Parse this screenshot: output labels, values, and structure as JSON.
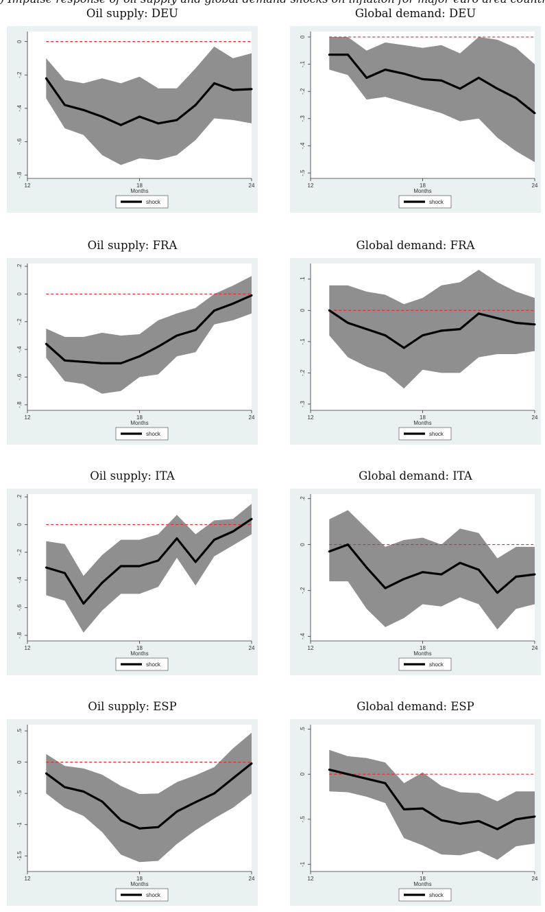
{
  "caption": ") Impulse response of oil supply and global demand shocks on inflation for major euro area countries",
  "chart_data": [
    {
      "type": "line",
      "title": "Oil supply: DEU",
      "xlabel": "Months",
      "legend": "shock",
      "x": [
        13,
        14,
        15,
        16,
        17,
        18,
        19,
        20,
        21,
        22,
        23,
        24
      ],
      "values": [
        -0.22,
        -0.38,
        -0.41,
        -0.45,
        -0.5,
        -0.45,
        -0.49,
        -0.47,
        -0.38,
        -0.25,
        -0.29,
        -0.285
      ],
      "upper": [
        -0.1,
        -0.23,
        -0.25,
        -0.22,
        -0.25,
        -0.21,
        -0.28,
        -0.28,
        -0.16,
        -0.03,
        -0.1,
        -0.07
      ],
      "lower": [
        -0.34,
        -0.52,
        -0.56,
        -0.68,
        -0.74,
        -0.7,
        -0.71,
        -0.68,
        -0.59,
        -0.46,
        -0.47,
        -0.49
      ],
      "xlim": [
        12,
        24
      ],
      "ylim": [
        -0.82,
        0.06
      ],
      "xticks": [
        12,
        18,
        24
      ],
      "yticks": [
        0,
        -0.2,
        -0.4,
        -0.6,
        -0.8
      ],
      "ytick_labels": [
        "0",
        "-.2",
        "-.4",
        "-.6",
        "-.8"
      ],
      "ref": 0
    },
    {
      "type": "line",
      "title": "Global demand: DEU",
      "xlabel": "Months",
      "legend": "shock",
      "x": [
        13,
        14,
        15,
        16,
        17,
        18,
        19,
        20,
        21,
        22,
        23,
        24
      ],
      "values": [
        -0.065,
        -0.065,
        -0.15,
        -0.12,
        -0.135,
        -0.155,
        -0.16,
        -0.19,
        -0.15,
        -0.19,
        -0.225,
        -0.28
      ],
      "upper": [
        0.0,
        0.0,
        -0.05,
        -0.02,
        -0.03,
        -0.04,
        -0.03,
        -0.06,
        0.0,
        -0.01,
        -0.04,
        -0.1
      ],
      "lower": [
        -0.12,
        -0.14,
        -0.23,
        -0.22,
        -0.24,
        -0.26,
        -0.28,
        -0.31,
        -0.3,
        -0.37,
        -0.42,
        -0.46
      ],
      "xlim": [
        12,
        24
      ],
      "ylim": [
        -0.52,
        0.02
      ],
      "xticks": [
        12,
        18,
        24
      ],
      "yticks": [
        0,
        -0.1,
        -0.2,
        -0.3,
        -0.4,
        -0.5
      ],
      "ytick_labels": [
        "0",
        "-.1",
        "-.2",
        "-.3",
        "-.4",
        "-.5"
      ],
      "ref": 0
    },
    {
      "type": "line",
      "title": "Oil supply: FRA",
      "xlabel": "Months",
      "legend": "shock",
      "x": [
        13,
        14,
        15,
        16,
        17,
        18,
        19,
        20,
        21,
        22,
        23,
        24
      ],
      "values": [
        -0.36,
        -0.48,
        -0.49,
        -0.5,
        -0.5,
        -0.45,
        -0.38,
        -0.3,
        -0.26,
        -0.12,
        -0.07,
        -0.01
      ],
      "upper": [
        -0.25,
        -0.31,
        -0.31,
        -0.28,
        -0.3,
        -0.29,
        -0.19,
        -0.14,
        -0.1,
        0.0,
        0.06,
        0.13
      ],
      "lower": [
        -0.46,
        -0.63,
        -0.65,
        -0.72,
        -0.7,
        -0.6,
        -0.58,
        -0.45,
        -0.42,
        -0.22,
        -0.19,
        -0.14
      ],
      "xlim": [
        12,
        24
      ],
      "ylim": [
        -0.84,
        0.22
      ],
      "xticks": [
        12,
        18,
        24
      ],
      "yticks": [
        0.2,
        0,
        -0.2,
        -0.4,
        -0.6,
        -0.8
      ],
      "ytick_labels": [
        ".2",
        "0",
        "-.2",
        "-.4",
        "-.6",
        "-.8"
      ],
      "ref": 0
    },
    {
      "type": "line",
      "title": "Global demand: FRA",
      "xlabel": "Months",
      "legend": "shock",
      "x": [
        13,
        14,
        15,
        16,
        17,
        18,
        19,
        20,
        21,
        22,
        23,
        24
      ],
      "values": [
        0.0,
        -0.04,
        -0.06,
        -0.08,
        -0.12,
        -0.08,
        -0.065,
        -0.06,
        -0.01,
        -0.025,
        -0.04,
        -0.045
      ],
      "upper": [
        0.08,
        0.08,
        0.06,
        0.05,
        0.02,
        0.04,
        0.08,
        0.09,
        0.13,
        0.09,
        0.06,
        0.04
      ],
      "lower": [
        -0.08,
        -0.15,
        -0.18,
        -0.2,
        -0.25,
        -0.19,
        -0.2,
        -0.2,
        -0.15,
        -0.14,
        -0.14,
        -0.13
      ],
      "xlim": [
        12,
        24
      ],
      "ylim": [
        -0.32,
        0.15
      ],
      "xticks": [
        12,
        18,
        24
      ],
      "yticks": [
        0.1,
        0,
        -0.1,
        -0.2,
        -0.3
      ],
      "ytick_labels": [
        ".1",
        "0",
        "-.1",
        "-.2",
        "-.3"
      ],
      "ref": 0
    },
    {
      "type": "line",
      "title": "Oil supply: ITA",
      "xlabel": "Months",
      "legend": "shock",
      "x": [
        13,
        14,
        15,
        16,
        17,
        18,
        19,
        20,
        21,
        22,
        23,
        24
      ],
      "values": [
        -0.31,
        -0.35,
        -0.57,
        -0.42,
        -0.3,
        -0.3,
        -0.26,
        -0.1,
        -0.27,
        -0.11,
        -0.05,
        0.04
      ],
      "upper": [
        -0.12,
        -0.14,
        -0.37,
        -0.22,
        -0.11,
        -0.11,
        -0.07,
        0.07,
        -0.07,
        0.03,
        0.04,
        0.15
      ],
      "lower": [
        -0.51,
        -0.55,
        -0.78,
        -0.62,
        -0.5,
        -0.5,
        -0.45,
        -0.24,
        -0.44,
        -0.23,
        -0.15,
        -0.07
      ],
      "xlim": [
        12,
        24
      ],
      "ylim": [
        -0.84,
        0.22
      ],
      "xticks": [
        12,
        18,
        24
      ],
      "yticks": [
        0.2,
        0,
        -0.2,
        -0.4,
        -0.6,
        -0.8
      ],
      "ytick_labels": [
        ".2",
        "0",
        "-.2",
        "-.4",
        "-.6",
        "-.8"
      ],
      "ref": 0
    },
    {
      "type": "line",
      "title": "Global demand: ITA",
      "xlabel": "Months",
      "legend": "shock",
      "x": [
        13,
        14,
        15,
        16,
        17,
        18,
        19,
        20,
        21,
        22,
        23,
        24
      ],
      "values": [
        -0.03,
        0.0,
        -0.1,
        -0.19,
        -0.15,
        -0.12,
        -0.13,
        -0.08,
        -0.11,
        -0.21,
        -0.14,
        -0.13
      ],
      "upper": [
        0.11,
        0.15,
        0.07,
        -0.01,
        0.02,
        0.03,
        0.0,
        0.07,
        0.05,
        -0.06,
        -0.01,
        -0.01
      ],
      "lower": [
        -0.16,
        -0.16,
        -0.28,
        -0.36,
        -0.32,
        -0.26,
        -0.27,
        -0.23,
        -0.26,
        -0.37,
        -0.28,
        -0.26
      ],
      "xlim": [
        12,
        24
      ],
      "ylim": [
        -0.42,
        0.22
      ],
      "xticks": [
        12,
        18,
        24
      ],
      "yticks": [
        0.2,
        0,
        -0.2,
        -0.4
      ],
      "ytick_labels": [
        ".2",
        "0",
        "-.2",
        "-.4"
      ],
      "ref": 0
    },
    {
      "type": "line",
      "title": "Oil supply: ESP",
      "xlabel": "Months",
      "legend": "shock",
      "x": [
        13,
        14,
        15,
        16,
        17,
        18,
        19,
        20,
        21,
        22,
        23,
        24
      ],
      "values": [
        -0.18,
        -0.4,
        -0.47,
        -0.63,
        -0.93,
        -1.06,
        -1.04,
        -0.79,
        -0.64,
        -0.5,
        -0.26,
        -0.02
      ],
      "upper": [
        0.13,
        -0.06,
        -0.1,
        -0.2,
        -0.38,
        -0.51,
        -0.5,
        -0.32,
        -0.21,
        -0.08,
        0.22,
        0.47
      ],
      "lower": [
        -0.5,
        -0.73,
        -0.86,
        -1.12,
        -1.48,
        -1.6,
        -1.58,
        -1.31,
        -1.09,
        -0.9,
        -0.73,
        -0.5
      ],
      "xlim": [
        12,
        24
      ],
      "ylim": [
        -1.75,
        0.6
      ],
      "xticks": [
        12,
        18,
        24
      ],
      "yticks": [
        0.5,
        0,
        -0.5,
        -1,
        -1.5
      ],
      "ytick_labels": [
        ".5",
        "0",
        "-.5",
        "-1",
        "-1.5"
      ],
      "ref": 0
    },
    {
      "type": "line",
      "title": "Global demand: ESP",
      "xlabel": "Months",
      "legend": "shock",
      "x": [
        13,
        14,
        15,
        16,
        17,
        18,
        19,
        20,
        21,
        22,
        23,
        24
      ],
      "values": [
        0.05,
        0.0,
        -0.05,
        -0.1,
        -0.39,
        -0.38,
        -0.51,
        -0.55,
        -0.52,
        -0.61,
        -0.5,
        -0.47
      ],
      "upper": [
        0.27,
        0.2,
        0.18,
        0.13,
        -0.1,
        0.02,
        -0.13,
        -0.2,
        -0.21,
        -0.3,
        -0.19,
        -0.19
      ],
      "lower": [
        -0.19,
        -0.2,
        -0.25,
        -0.32,
        -0.71,
        -0.79,
        -0.89,
        -0.9,
        -0.85,
        -0.95,
        -0.8,
        -0.77
      ],
      "xlim": [
        12,
        24
      ],
      "ylim": [
        -1.08,
        0.55
      ],
      "xticks": [
        12,
        18,
        24
      ],
      "yticks": [
        0.5,
        0,
        -0.5,
        -1
      ],
      "ytick_labels": [
        ".5",
        "0",
        "-.5",
        "-1"
      ],
      "ref": 0
    }
  ]
}
